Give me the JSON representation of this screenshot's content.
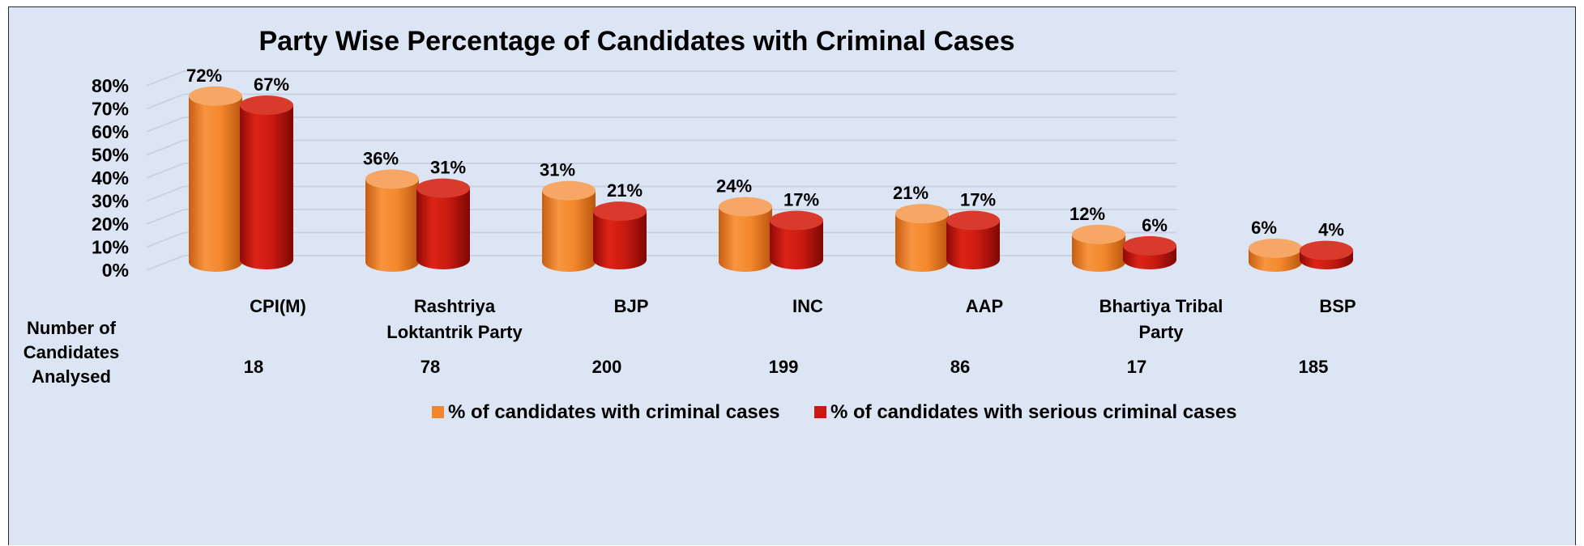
{
  "chart_data": {
    "type": "bar",
    "title": "Party Wise Percentage of Candidates with Criminal Cases",
    "categories": [
      [
        "CPI(M)"
      ],
      [
        "Rashtriya",
        "Loktantrik Party"
      ],
      [
        "BJP"
      ],
      [
        "INC"
      ],
      [
        "AAP"
      ],
      [
        "Bhartiya Tribal",
        "Party"
      ],
      [
        "BSP"
      ]
    ],
    "series": [
      {
        "name": "% of candidates with criminal cases",
        "values": [
          72,
          36,
          31,
          24,
          21,
          12,
          6
        ],
        "color": "#f0862c",
        "label_suffix": "%"
      },
      {
        "name": "% of candidates with serious criminal cases",
        "values": [
          67,
          31,
          21,
          17,
          17,
          6,
          4
        ],
        "color": "#c81a10",
        "label_suffix": "%"
      }
    ],
    "y_ticks": [
      "0%",
      "10%",
      "20%",
      "30%",
      "40%",
      "50%",
      "60%",
      "70%",
      "80%"
    ],
    "ylim": [
      0,
      80
    ],
    "grid": true,
    "legend_position": "bottom",
    "row_label": [
      "Number of",
      "Candidates",
      "Analysed"
    ],
    "candidates_analysed": [
      "18",
      "78",
      "200",
      "199",
      "86",
      "17",
      "185"
    ]
  }
}
